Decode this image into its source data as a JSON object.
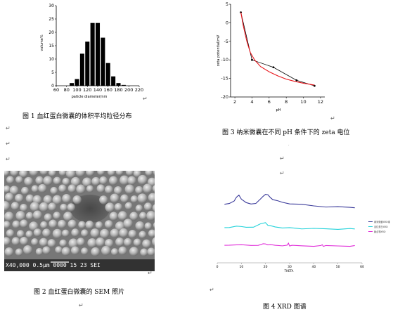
{
  "figures": {
    "fig1": {
      "caption": "图 1  血红蛋白微囊的体积平均粒径分布"
    },
    "fig2": {
      "caption": "图 2  血红蛋白微囊的 SEM 照片",
      "sem_label": "X40,000  0.5μm  0000 15 23 SEI"
    },
    "fig3": {
      "caption": "图 3  纳米微囊在不同 pH 条件下的 zeta 电位"
    },
    "fig4": {
      "caption": "图 4    XRD 图谱",
      "legend": [
        "纳米微囊XRD谱",
        "血红蛋白XRD",
        "聚合物XRD"
      ],
      "series_colors": [
        "#3a3a9a",
        "#22d2da",
        "#e02ad8"
      ]
    }
  },
  "paragraph_mark": "↵",
  "chart_data": [
    {
      "type": "bar",
      "title": "",
      "xlabel": "paticle diameter/nm",
      "ylabel": "volume%",
      "categories": [
        90,
        100,
        110,
        120,
        130,
        140,
        150,
        160,
        170,
        180,
        190
      ],
      "values": [
        1,
        2.5,
        12,
        16.5,
        23.5,
        23.5,
        18,
        8.5,
        3.5,
        1,
        0.3
      ],
      "xticks": [
        60,
        80,
        100,
        120,
        140,
        160,
        180,
        200,
        220
      ],
      "yticks": [
        0,
        5,
        10,
        15,
        20,
        25,
        30
      ],
      "xlim": [
        60,
        220
      ],
      "ylim": [
        0,
        30
      ],
      "grid": false
    },
    {
      "type": "line",
      "title": "",
      "xlabel": "pH",
      "ylabel": "zeta potential/mV",
      "series": [
        {
          "color": "#000000",
          "x": [
            2.7,
            4.0,
            6.5,
            9.2,
            11.3
          ],
          "y": [
            2.8,
            -10,
            -12,
            -15.5,
            -17
          ]
        },
        {
          "color": "#e8141a",
          "x": [
            2.7,
            3.0,
            3.4,
            3.8,
            4.3,
            5.0,
            6.0,
            7.0,
            8.0,
            9.0,
            10.0,
            11.3
          ],
          "y": [
            2.8,
            -1,
            -5,
            -8,
            -10,
            -11.8,
            -13.2,
            -14.3,
            -15.2,
            -15.8,
            -16.3,
            -16.8
          ]
        }
      ],
      "xticks": [
        2,
        4,
        6,
        8,
        10,
        12
      ],
      "yticks": [
        5,
        0,
        -5,
        -10,
        -15,
        -20
      ],
      "xlim": [
        1.5,
        12.5
      ],
      "ylim": [
        -20,
        5
      ],
      "grid": false
    },
    {
      "type": "line",
      "title": "",
      "xlabel": "THETA",
      "ylabel": "",
      "xticks": [
        0,
        10,
        20,
        30,
        40,
        50,
        60
      ],
      "xlim": [
        0,
        60
      ],
      "series": [
        {
          "name": "纳米微囊XRD谱",
          "color": "#3a3a9a",
          "x": [
            3,
            5,
            7,
            8,
            9,
            10,
            12,
            14,
            16,
            18,
            19,
            20,
            21,
            22,
            23,
            25,
            27,
            30,
            35,
            40,
            45,
            50,
            55,
            57
          ],
          "y": [
            0.55,
            0.6,
            0.72,
            0.85,
            0.95,
            0.8,
            0.62,
            0.58,
            0.62,
            0.78,
            0.9,
            1.0,
            0.95,
            0.85,
            0.78,
            0.7,
            0.65,
            0.6,
            0.55,
            0.5,
            0.47,
            0.45,
            0.44,
            0.44
          ]
        },
        {
          "name": "血红蛋白XRD",
          "color": "#22d2da",
          "x": [
            3,
            5,
            8,
            10,
            12,
            15,
            18,
            20,
            21,
            22,
            24,
            27,
            30,
            33,
            35,
            40,
            45,
            50,
            55,
            57
          ],
          "y": [
            0.25,
            0.28,
            0.4,
            0.32,
            0.3,
            0.33,
            0.5,
            0.6,
            0.45,
            0.38,
            0.32,
            0.28,
            0.25,
            0.23,
            0.22,
            0.2,
            0.2,
            0.19,
            0.19,
            0.19
          ]
        },
        {
          "name": "聚合物XRD",
          "color": "#e02ad8",
          "x": [
            3,
            5,
            8,
            10,
            14,
            17,
            19,
            20,
            21,
            22,
            24,
            27,
            29,
            29.5,
            30,
            31,
            35,
            40,
            43,
            43.5,
            44,
            45,
            50,
            55,
            57
          ],
          "y": [
            0.02,
            0.06,
            0.12,
            0.07,
            0.04,
            0.08,
            0.14,
            0.16,
            0.12,
            0.08,
            0.05,
            0.04,
            0.03,
            0.22,
            0.03,
            0.02,
            0.01,
            0.0,
            0.0,
            0.1,
            0.0,
            0.0,
            0.0,
            0.0,
            0.0
          ]
        }
      ]
    }
  ]
}
